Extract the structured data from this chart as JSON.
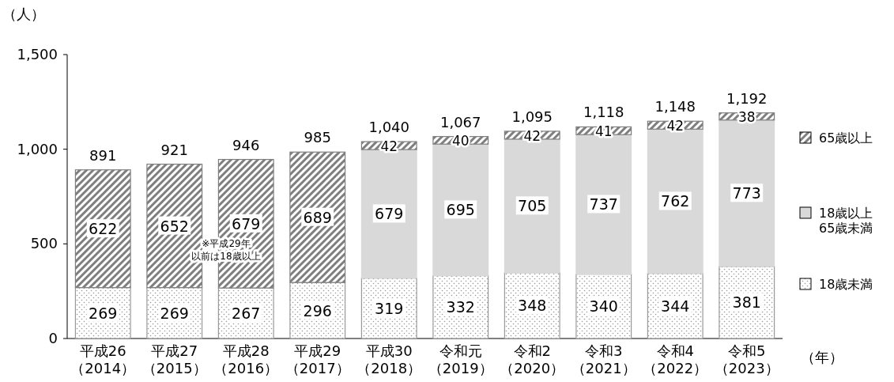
{
  "chart_data": {
    "type": "bar",
    "stacked": true,
    "ylabel": "（人）",
    "xlabel": "（年）",
    "categories": [
      "平成26（2014）",
      "平成27（2015）",
      "平成28（2016）",
      "平成29（2017）",
      "平成30（2018）",
      "令和元（2019）",
      "令和2（2020）",
      "令和3（2021）",
      "令和4（2022）",
      "令和5（2023）"
    ],
    "series": [
      {
        "name": "18歳未満",
        "color": "#9a9a9a",
        "values": [
          269,
          269,
          267,
          296,
          319,
          332,
          348,
          340,
          344,
          381
        ]
      },
      {
        "name": "18歳以上65歳未満",
        "color": "#d9d9d9",
        "values": [
          null,
          null,
          null,
          null,
          679,
          695,
          705,
          737,
          762,
          773
        ]
      },
      {
        "name": "65歳以上",
        "color": "#7f7f7f",
        "values": [
          622,
          652,
          679,
          689,
          42,
          40,
          42,
          41,
          42,
          38
        ]
      }
    ],
    "totals": [
      "891",
      "921",
      "946",
      "985",
      "1,040",
      "1,067",
      "1,095",
      "1,118",
      "1,148",
      "1,192"
    ],
    "data_labels": true,
    "ylim": [
      0,
      1500
    ],
    "yticks": [
      0,
      500,
      {
        "value": 1000,
        "label": "1,000"
      },
      {
        "value": 1500,
        "label": "1,500"
      }
    ],
    "legend": "right",
    "annotations": [
      "※平成29年",
      "以前は18歳以上"
    ]
  }
}
